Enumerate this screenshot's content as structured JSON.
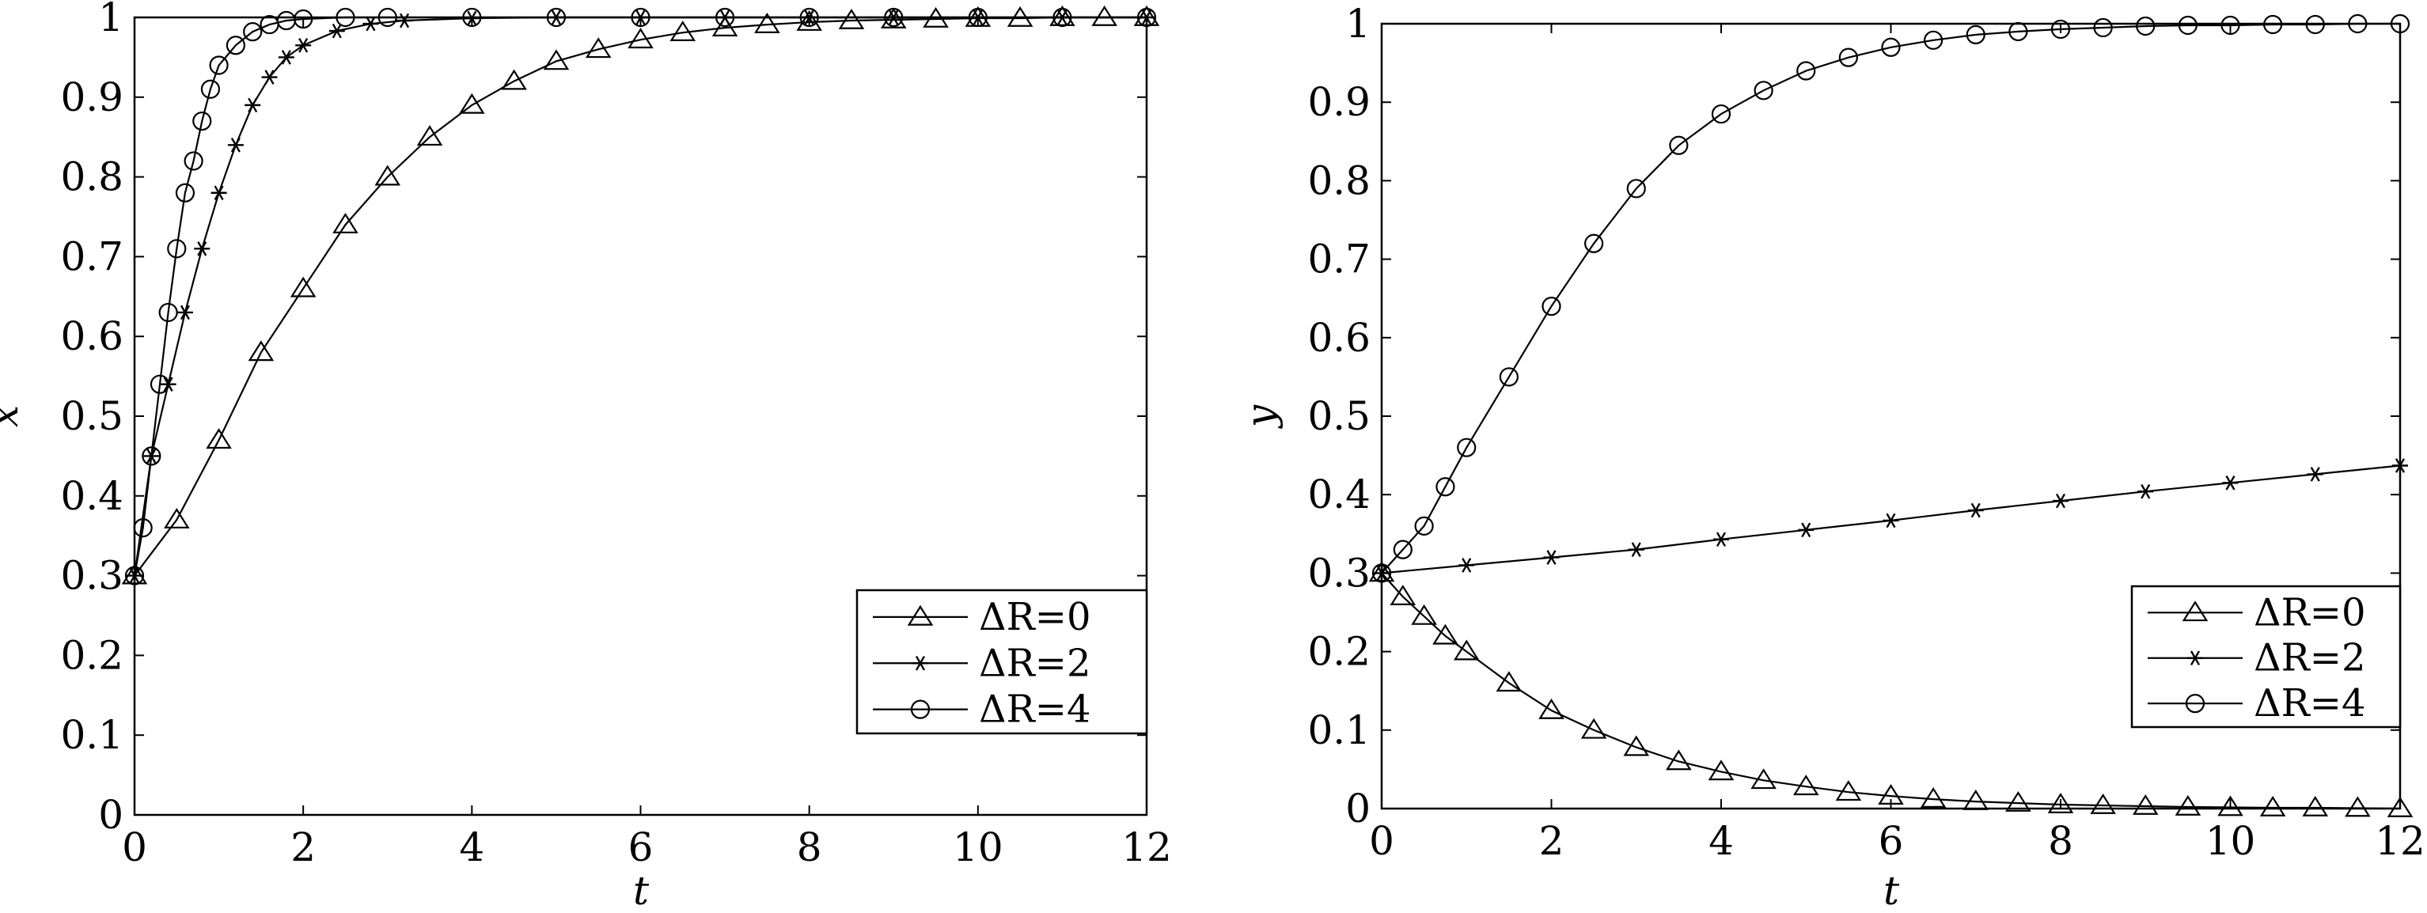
{
  "chart_data": [
    {
      "type": "line",
      "xlabel": "t",
      "ylabel": "x",
      "xlim": [
        0,
        12
      ],
      "ylim": [
        0,
        1
      ],
      "xticks": [
        "0",
        "2",
        "4",
        "6",
        "8",
        "10",
        "12"
      ],
      "yticks": [
        "0",
        "0.1",
        "0.2",
        "0.3",
        "0.4",
        "0.5",
        "0.6",
        "0.7",
        "0.8",
        "0.9",
        "1"
      ],
      "grid": false,
      "legend_position": "lower-right",
      "series": [
        {
          "name": "ΔR=0",
          "marker": "triangle",
          "x": [
            0,
            0.5,
            1,
            1.5,
            2,
            2.5,
            3,
            3.5,
            4,
            4.5,
            5,
            5.5,
            6,
            6.5,
            7,
            7.5,
            8,
            8.5,
            9,
            9.5,
            10,
            10.5,
            11,
            11.5,
            12
          ],
          "y": [
            0.3,
            0.37,
            0.47,
            0.58,
            0.66,
            0.74,
            0.8,
            0.85,
            0.89,
            0.92,
            0.945,
            0.96,
            0.972,
            0.981,
            0.987,
            0.991,
            0.994,
            0.996,
            0.997,
            0.998,
            0.999,
            0.999,
            1.0,
            1.0,
            1.0
          ]
        },
        {
          "name": "ΔR=2",
          "marker": "asterisk",
          "x": [
            0,
            0.2,
            0.4,
            0.6,
            0.8,
            1.0,
            1.2,
            1.4,
            1.6,
            1.8,
            2.0,
            2.4,
            2.8,
            3.2,
            4,
            5,
            6,
            7,
            8,
            9,
            10,
            11,
            12
          ],
          "y": [
            0.3,
            0.45,
            0.54,
            0.63,
            0.71,
            0.78,
            0.84,
            0.89,
            0.925,
            0.95,
            0.965,
            0.983,
            0.992,
            0.996,
            0.999,
            1.0,
            1.0,
            1.0,
            1.0,
            1.0,
            1.0,
            1.0,
            1.0
          ]
        },
        {
          "name": "ΔR=4",
          "marker": "circle",
          "x": [
            0,
            0.1,
            0.2,
            0.3,
            0.4,
            0.5,
            0.6,
            0.7,
            0.8,
            0.9,
            1.0,
            1.2,
            1.4,
            1.6,
            1.8,
            2.0,
            2.5,
            3,
            4,
            5,
            6,
            7,
            8,
            9,
            10,
            11,
            12
          ],
          "y": [
            0.3,
            0.36,
            0.45,
            0.54,
            0.63,
            0.71,
            0.78,
            0.82,
            0.87,
            0.91,
            0.94,
            0.965,
            0.982,
            0.991,
            0.996,
            0.998,
            1.0,
            1.0,
            1.0,
            1.0,
            1.0,
            1.0,
            1.0,
            1.0,
            1.0,
            1.0,
            1.0
          ]
        }
      ]
    },
    {
      "type": "line",
      "xlabel": "t",
      "ylabel": "y",
      "xlim": [
        0,
        12
      ],
      "ylim": [
        0,
        1
      ],
      "xticks": [
        "0",
        "2",
        "4",
        "6",
        "8",
        "10",
        "12"
      ],
      "yticks": [
        "0",
        "0.1",
        "0.2",
        "0.3",
        "0.4",
        "0.5",
        "0.6",
        "0.7",
        "0.8",
        "0.9",
        "1"
      ],
      "grid": false,
      "legend_position": "lower-right",
      "series": [
        {
          "name": "ΔR=0",
          "marker": "triangle",
          "x": [
            0,
            0.25,
            0.5,
            0.75,
            1,
            1.5,
            2,
            2.5,
            3,
            3.5,
            4,
            4.5,
            5,
            5.5,
            6,
            6.5,
            7,
            7.5,
            8,
            8.5,
            9,
            9.5,
            10,
            10.5,
            11,
            11.5,
            12
          ],
          "y": [
            0.3,
            0.27,
            0.245,
            0.22,
            0.2,
            0.16,
            0.125,
            0.1,
            0.078,
            0.06,
            0.047,
            0.036,
            0.028,
            0.021,
            0.016,
            0.012,
            0.009,
            0.007,
            0.005,
            0.004,
            0.003,
            0.002,
            0.0015,
            0.001,
            0.001,
            0.0005,
            0.0
          ]
        },
        {
          "name": "ΔR=2",
          "marker": "asterisk",
          "x": [
            0,
            1,
            2,
            3,
            4,
            5,
            6,
            7,
            8,
            9,
            10,
            11,
            12
          ],
          "y": [
            0.3,
            0.31,
            0.32,
            0.33,
            0.343,
            0.355,
            0.367,
            0.38,
            0.392,
            0.404,
            0.415,
            0.426,
            0.437
          ]
        },
        {
          "name": "ΔR=4",
          "marker": "circle",
          "x": [
            0,
            0.25,
            0.5,
            0.75,
            1,
            1.5,
            2,
            2.5,
            3,
            3.5,
            4,
            4.5,
            5,
            5.5,
            6,
            6.5,
            7,
            7.5,
            8,
            8.5,
            9,
            9.5,
            10,
            10.5,
            11,
            11.5,
            12
          ],
          "y": [
            0.3,
            0.33,
            0.36,
            0.41,
            0.46,
            0.55,
            0.64,
            0.72,
            0.79,
            0.845,
            0.885,
            0.915,
            0.94,
            0.957,
            0.97,
            0.979,
            0.986,
            0.99,
            0.993,
            0.995,
            0.997,
            0.998,
            0.998,
            0.999,
            0.999,
            1.0,
            1.0
          ]
        }
      ]
    }
  ]
}
